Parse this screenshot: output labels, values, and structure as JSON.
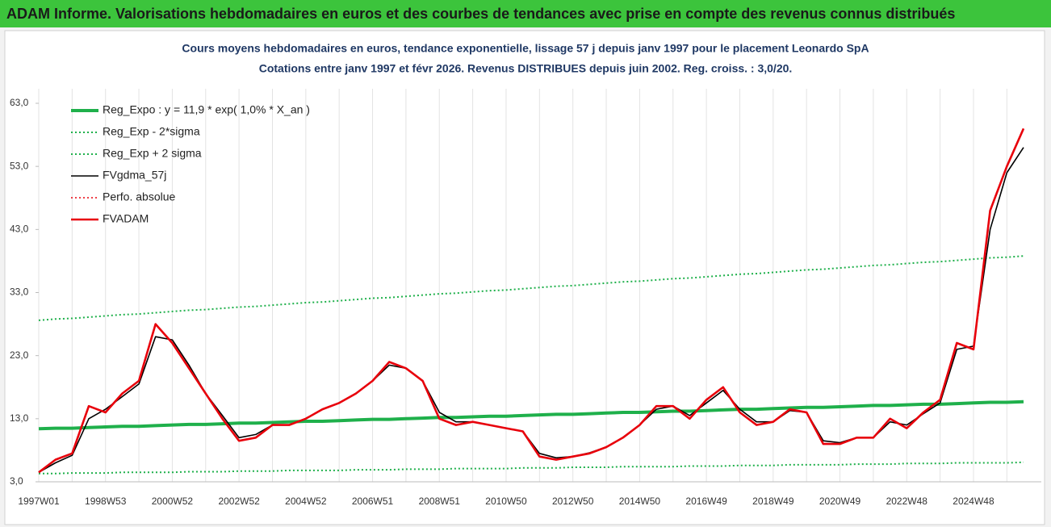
{
  "header": {
    "title": "ADAM Informe. Valorisations hebdomadaires en euros et des courbes de tendances avec prise en compte des revenus connus distribués"
  },
  "chart_data": {
    "type": "line",
    "subtitle": [
      "Cours moyens hebdomadaires en euros, tendance exponentielle, lissage 57 j depuis janv 1997 pour le placement Leonardo SpA",
      "Cotations entre janv 1997 et févr 2026. Revenus DISTRIBUES depuis juin 2002.  Reg. croiss. : 3,0/20."
    ],
    "categories": [
      "1997W01",
      null,
      null,
      null,
      "1998W53",
      null,
      null,
      null,
      "2000W52",
      null,
      null,
      null,
      "2002W52",
      null,
      null,
      null,
      "2004W52",
      null,
      null,
      null,
      "2006W51",
      null,
      null,
      null,
      "2008W51",
      null,
      null,
      null,
      "2010W50",
      null,
      null,
      null,
      "2012W50",
      null,
      null,
      null,
      "2014W50",
      null,
      null,
      null,
      "2016W49",
      null,
      null,
      null,
      "2018W49",
      null,
      null,
      null,
      "2020W49",
      null,
      null,
      null,
      "2022W48",
      null,
      null,
      null,
      "2024W48",
      null,
      null,
      null
    ],
    "ylim": [
      3,
      63
    ],
    "yticks": [
      {
        "value": 3,
        "label": "3,0"
      },
      {
        "value": 13,
        "label": "13,0"
      },
      {
        "value": 23,
        "label": "23,0"
      },
      {
        "value": 33,
        "label": "33,0"
      },
      {
        "value": 43,
        "label": "43,0"
      },
      {
        "value": 53,
        "label": "53,0"
      },
      {
        "value": 63,
        "label": "63,0"
      }
    ],
    "grid": "x",
    "legend": "top-left",
    "series": [
      {
        "name": "Reg_Expo : y = 11,9 * exp( 1,0% *  X_an )",
        "color": "#1fb04b",
        "style": "solid",
        "width": 4,
        "values": [
          11.4,
          11.5,
          11.5,
          11.6,
          11.7,
          11.8,
          11.8,
          11.9,
          12.0,
          12.1,
          12.1,
          12.2,
          12.3,
          12.3,
          12.4,
          12.5,
          12.6,
          12.6,
          12.7,
          12.8,
          12.9,
          12.9,
          13.0,
          13.1,
          13.2,
          13.2,
          13.3,
          13.4,
          13.4,
          13.5,
          13.6,
          13.7,
          13.7,
          13.8,
          13.9,
          14.0,
          14.0,
          14.1,
          14.2,
          14.2,
          14.3,
          14.4,
          14.5,
          14.5,
          14.6,
          14.7,
          14.8,
          14.8,
          14.9,
          15.0,
          15.1,
          15.1,
          15.2,
          15.3,
          15.3,
          15.4,
          15.5,
          15.6,
          15.6,
          15.7
        ]
      },
      {
        "name": "Reg_Exp - 2*sigma",
        "color": "#1fb04b",
        "style": "dotted",
        "width": 2,
        "values": [
          4.3,
          4.3,
          4.4,
          4.4,
          4.4,
          4.5,
          4.5,
          4.5,
          4.5,
          4.6,
          4.6,
          4.6,
          4.7,
          4.7,
          4.7,
          4.8,
          4.8,
          4.8,
          4.8,
          4.9,
          4.9,
          4.9,
          5.0,
          5.0,
          5.0,
          5.1,
          5.1,
          5.1,
          5.1,
          5.2,
          5.2,
          5.2,
          5.3,
          5.3,
          5.3,
          5.4,
          5.4,
          5.4,
          5.4,
          5.5,
          5.5,
          5.5,
          5.6,
          5.6,
          5.6,
          5.7,
          5.7,
          5.7,
          5.7,
          5.8,
          5.8,
          5.8,
          5.9,
          5.9,
          5.9,
          6.0,
          6.0,
          6.0,
          6.0,
          6.1
        ]
      },
      {
        "name": "Reg_Exp + 2 sigma",
        "color": "#1fb04b",
        "style": "dotted",
        "width": 2,
        "values": [
          28.6,
          28.8,
          28.9,
          29.1,
          29.3,
          29.5,
          29.6,
          29.8,
          30.0,
          30.2,
          30.3,
          30.5,
          30.7,
          30.8,
          31.0,
          31.2,
          31.4,
          31.5,
          31.7,
          31.9,
          32.1,
          32.2,
          32.4,
          32.6,
          32.8,
          32.9,
          33.1,
          33.3,
          33.4,
          33.6,
          33.8,
          34.0,
          34.1,
          34.3,
          34.5,
          34.7,
          34.8,
          35.0,
          35.2,
          35.3,
          35.5,
          35.7,
          35.9,
          36.0,
          36.2,
          36.4,
          36.6,
          36.7,
          36.9,
          37.1,
          37.3,
          37.4,
          37.6,
          37.8,
          37.9,
          38.1,
          38.3,
          38.5,
          38.6,
          38.8
        ]
      },
      {
        "name": "FVgdma_57j",
        "color": "#000000",
        "style": "solid",
        "width": 1.6,
        "values": [
          4.5,
          6,
          7.2,
          13,
          14.5,
          16.5,
          18.5,
          26,
          25.5,
          21.5,
          17,
          13.5,
          10,
          10.5,
          12,
          12,
          13,
          14.5,
          15.5,
          17,
          19,
          21.5,
          21,
          19,
          14,
          12.5,
          12.5,
          12,
          11.5,
          11,
          7.5,
          6.8,
          7,
          7.6,
          8.5,
          10,
          12,
          14.5,
          15,
          13.5,
          15.5,
          17.5,
          14.5,
          12.5,
          12.5,
          14.3,
          14,
          9.5,
          9.2,
          10,
          10,
          12.5,
          12,
          13.8,
          15.5,
          24,
          24.5,
          43,
          52,
          56
        ]
      },
      {
        "name": "Perfo. absolue",
        "color": "#e8000b",
        "style": "dotted",
        "width": 1.5,
        "values": [
          null,
          null,
          null,
          null,
          null,
          null,
          null,
          null,
          null,
          null,
          null,
          null,
          null,
          null,
          null,
          null,
          null,
          null,
          null,
          null,
          null,
          null,
          null,
          null,
          null,
          null,
          null,
          null,
          null,
          null,
          null,
          null,
          null,
          null,
          null,
          null,
          null,
          null,
          null,
          null,
          null,
          null,
          null,
          null,
          null,
          null,
          null,
          null,
          null,
          null,
          null,
          null,
          null,
          null,
          null,
          null,
          null,
          null,
          null,
          null
        ]
      },
      {
        "name": "FVADAM",
        "color": "#e8000b",
        "style": "solid",
        "width": 2.6,
        "values": [
          4.5,
          6.5,
          7.5,
          15,
          14,
          17,
          19,
          28,
          25,
          21,
          17,
          13,
          9.5,
          10,
          12,
          12,
          13,
          14.5,
          15.5,
          17,
          19,
          22,
          21,
          19,
          13,
          12,
          12.5,
          12,
          11.5,
          11,
          7,
          6.5,
          7,
          7.5,
          8.5,
          10,
          12,
          15,
          15,
          13,
          16,
          18,
          14,
          12,
          12.5,
          14.5,
          14,
          9,
          9,
          10,
          10,
          13,
          11.5,
          14,
          16,
          25,
          24,
          46,
          53,
          59
        ]
      }
    ]
  }
}
